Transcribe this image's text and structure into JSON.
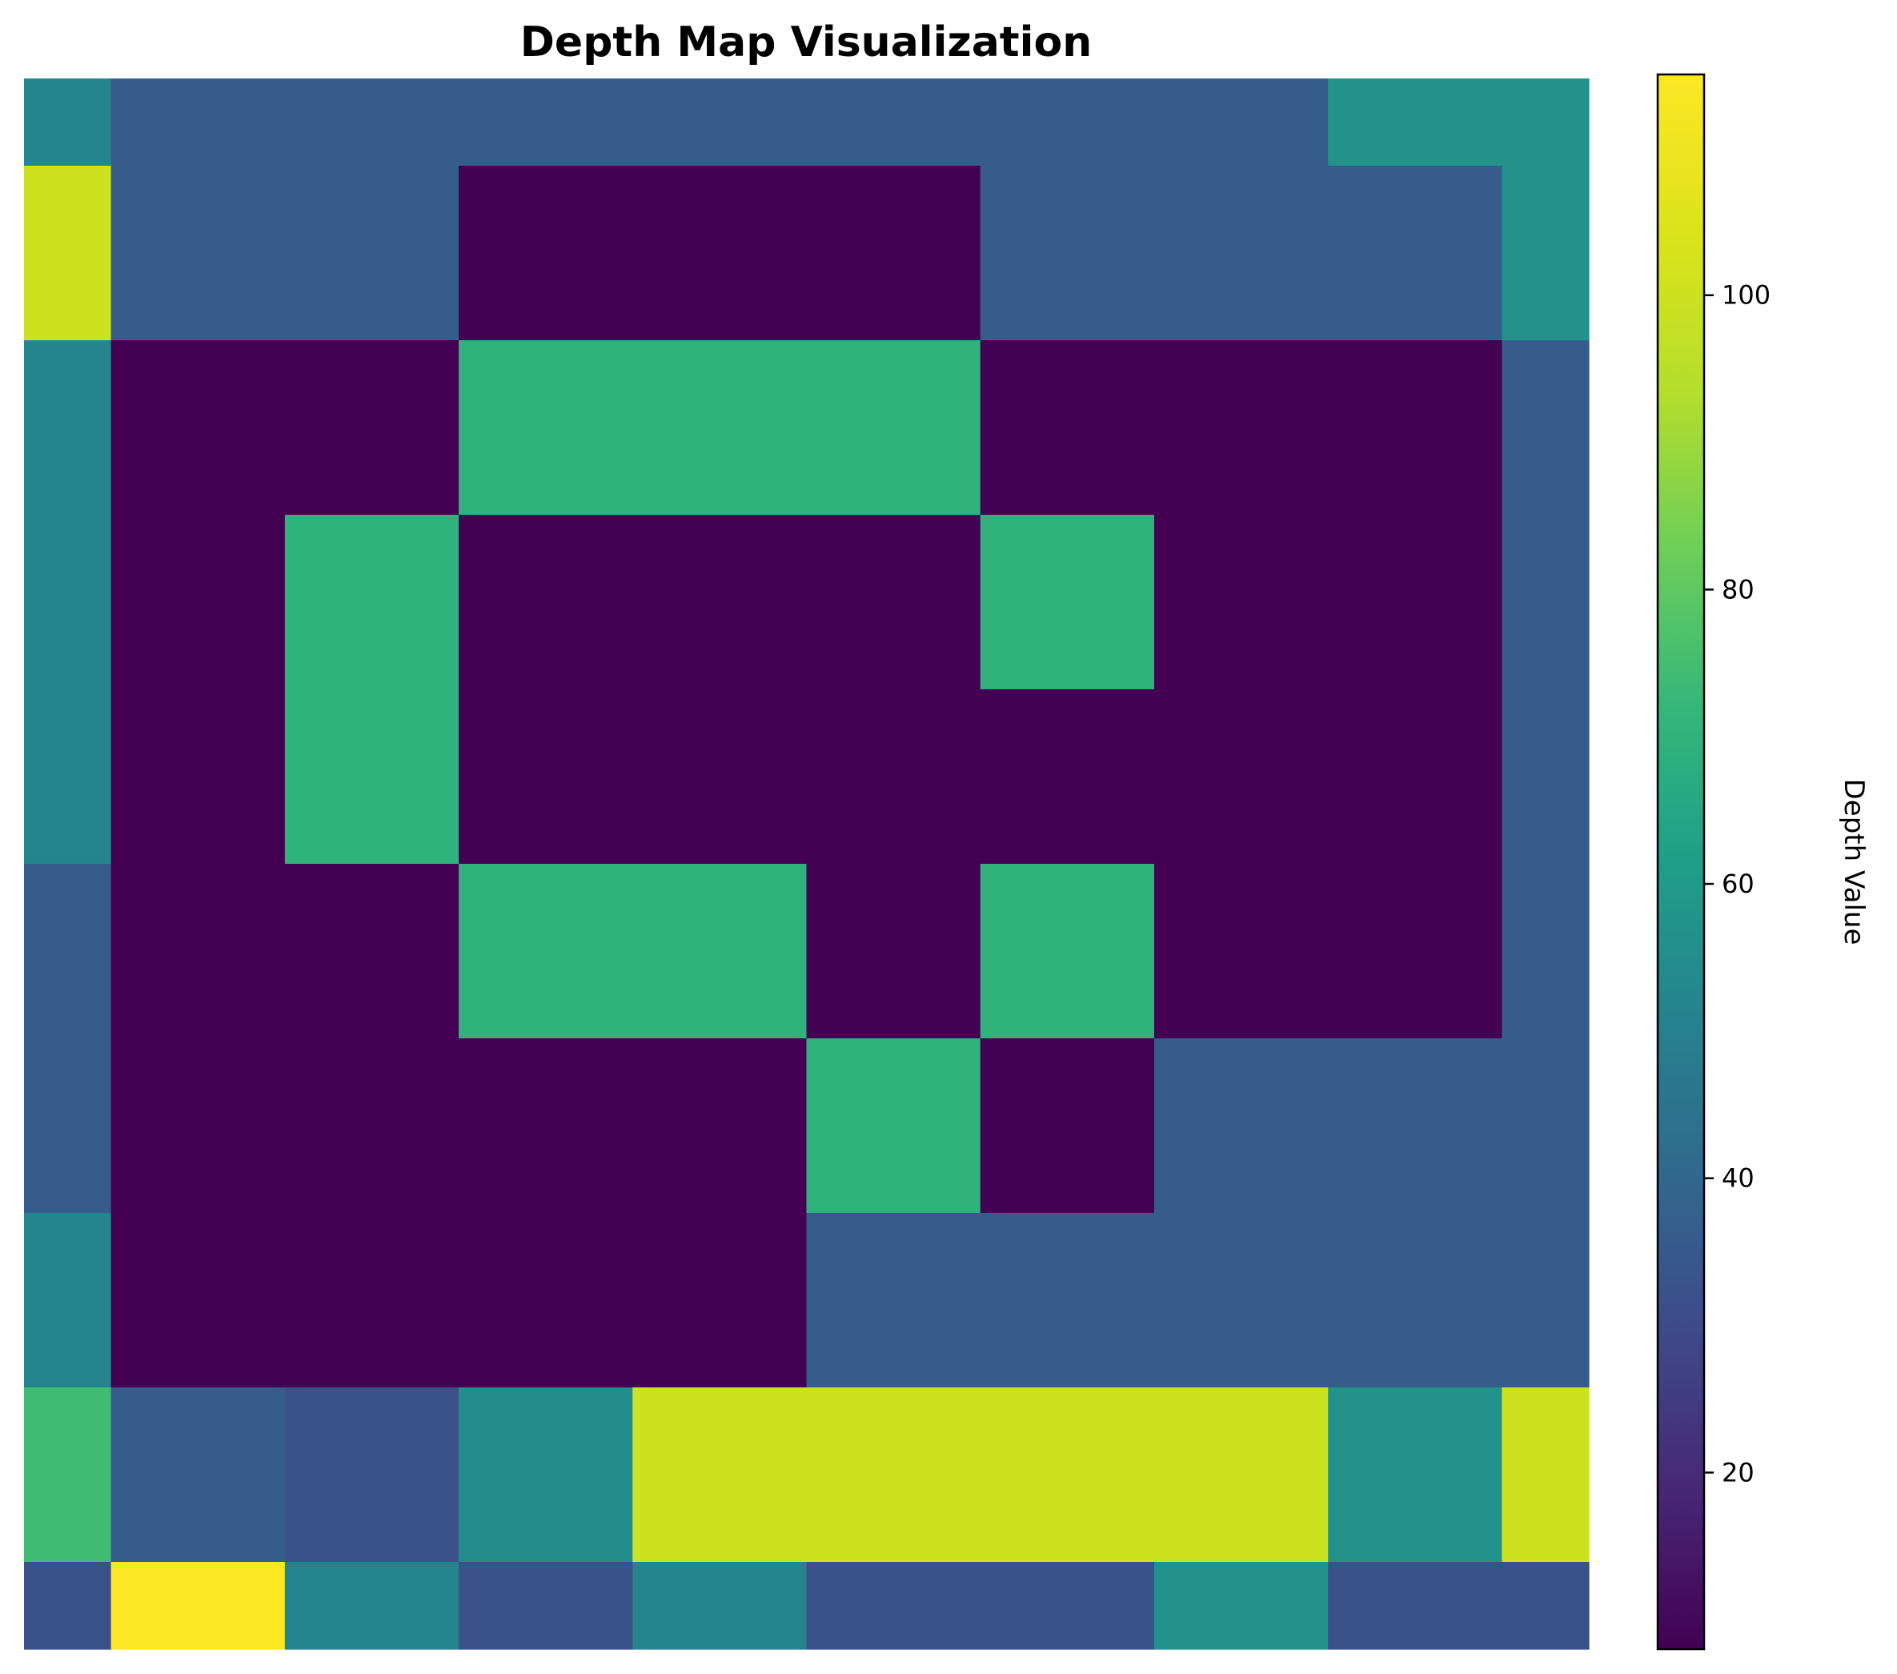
{
  "chart_data": {
    "type": "heatmap",
    "title": "Depth Map Visualization",
    "colormap": "viridis",
    "vmin": 8,
    "vmax": 115,
    "colorbar": {
      "label": "Depth Value",
      "ticks": [
        20,
        40,
        60,
        80,
        100
      ],
      "tick_labels": [
        "20",
        "40",
        "60",
        "80",
        "100"
      ]
    },
    "x_edges": [
      0,
      0.5,
      1.5,
      2.5,
      3.5,
      4.5,
      5.5,
      6.5,
      7.5,
      8.5,
      9
    ],
    "y_edges": [
      0,
      0.5,
      1.5,
      2.5,
      3.5,
      4.5,
      5.5,
      6.5,
      7.5,
      8.5,
      9
    ],
    "values": [
      [
        52,
        36,
        36,
        36,
        36,
        36,
        36,
        36,
        57,
        57
      ],
      [
        100,
        36,
        36,
        8,
        8,
        8,
        36,
        36,
        36,
        57
      ],
      [
        52,
        8,
        8,
        70,
        70,
        70,
        8,
        8,
        8,
        36
      ],
      [
        52,
        8,
        70,
        8,
        8,
        8,
        70,
        8,
        8,
        36
      ],
      [
        52,
        8,
        70,
        8,
        8,
        8,
        8,
        8,
        8,
        36
      ],
      [
        36,
        8,
        8,
        70,
        70,
        8,
        70,
        8,
        8,
        36
      ],
      [
        36,
        8,
        8,
        8,
        8,
        70,
        8,
        36,
        36,
        36
      ],
      [
        52,
        8,
        8,
        8,
        8,
        36,
        36,
        36,
        36,
        36
      ],
      [
        74,
        36,
        32,
        55,
        100,
        100,
        100,
        100,
        57,
        100
      ],
      [
        32,
        115,
        52,
        32,
        52,
        32,
        32,
        57,
        32,
        32
      ]
    ],
    "axes_visible": false,
    "grid": false
  }
}
